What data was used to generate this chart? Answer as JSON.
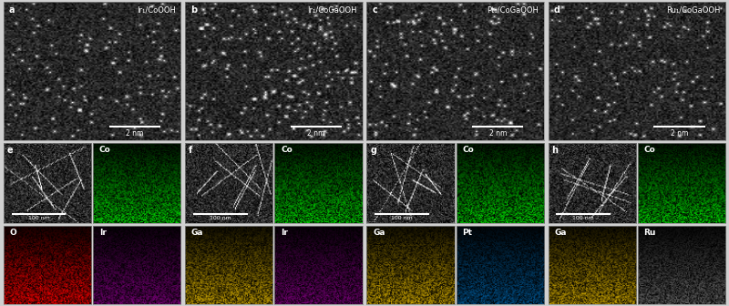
{
  "top_labels": [
    "a",
    "b",
    "c",
    "d"
  ],
  "top_titles": [
    "Ir₁/CoOOH",
    "Ir₁/CoGaOOH",
    "Pt₁/CoGaOOH",
    "Ru₁/CoGaOOH"
  ],
  "top_scale": "2 nm",
  "mid_labels": [
    "e",
    "f",
    "g",
    "h"
  ],
  "mid_scale": "100 nm",
  "mid_right_label": "Co",
  "bot_left_labels": [
    "O",
    "Ga",
    "Ga",
    "Ga"
  ],
  "bot_left_colors": [
    "red",
    "yellow",
    "yellow",
    "yellow"
  ],
  "bot_right_labels": [
    "Ir",
    "Ir",
    "Pt",
    "Ru"
  ],
  "bot_right_colors": [
    "purple",
    "purple",
    "cyan",
    "white"
  ],
  "fig_bg": "#d0d0d0",
  "panel_border": "#888888"
}
